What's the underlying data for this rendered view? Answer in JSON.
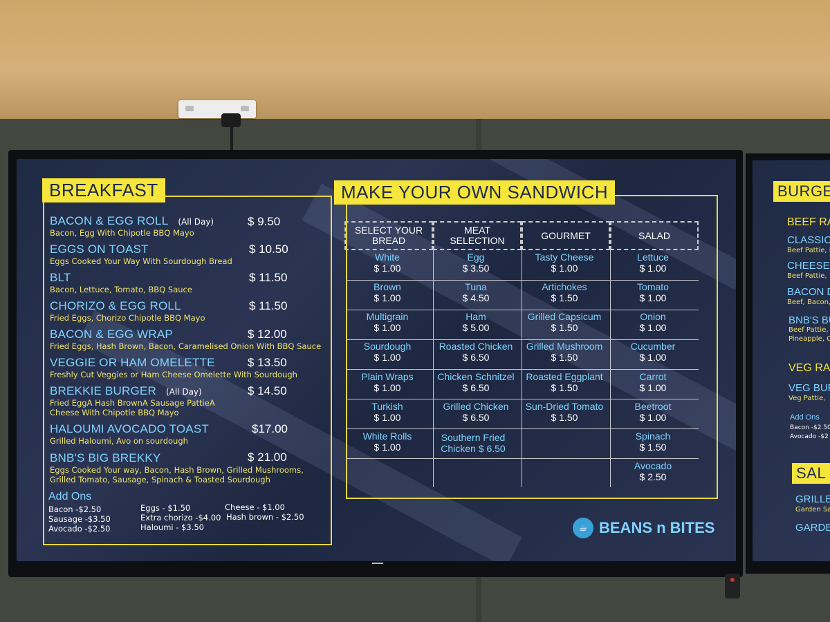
{
  "breakfast": {
    "title": "BREAKFAST",
    "items": [
      {
        "name": "BACON & EGG ROLL",
        "tag": "(All Day)",
        "price": "$ 9.50",
        "desc": "Bacon, Egg With Chipotle BBQ Mayo"
      },
      {
        "name": "EGGS ON TOAST",
        "tag": "",
        "price": "$ 10.50",
        "desc": "Eggs Cooked Your Way With Sourdough Bread"
      },
      {
        "name": "BLT",
        "tag": "",
        "price": "$ 11.50",
        "desc": "Bacon, Lettuce, Tomato, BBQ Sauce"
      },
      {
        "name": "CHORIZO & EGG ROLL",
        "tag": "",
        "price": "$ 11.50",
        "desc": "Fried Eggs, Chorizo Chipotle BBQ Mayo"
      },
      {
        "name": "BACON & EGG WRAP",
        "tag": "",
        "price": "$ 12.00",
        "desc": "Fried Eggs, Hash Brown, Bacon, Caramelised Onion With BBQ Sauce"
      },
      {
        "name": "VEGGIE OR HAM OMELETTE",
        "tag": "",
        "price": "$ 13.50",
        "desc": "Freshly Cut Veggies or Ham Cheese Omelette With Sourdough"
      },
      {
        "name": "BREKKIE BURGER",
        "tag": "(All Day)",
        "price": "$ 14.50",
        "desc": "Fried EggA Hash BrownA Sausage PattieA\nCheese With Chipotle BBQ Mayo"
      },
      {
        "name": "HALOUMI AVOCADO TOAST",
        "tag": "",
        "price": "$17.00",
        "desc": "Grilled Haloumi, Avo on sourdough"
      },
      {
        "name": "BNB'S BIG BREKKY",
        "tag": "",
        "price": "$ 21.00",
        "desc": "Eggs Cooked Your way, Bacon, Hash Brown, Grilled Mushrooms,\nGrilled Tomato, Sausage, Spinach & Toasted Sourdough"
      }
    ],
    "addons": {
      "title": "Add Ons",
      "col1": [
        "Bacon -$2.50",
        "Sausage -$3.50",
        "Avocado -$2.50"
      ],
      "col2": [
        "Eggs - $1.50",
        "Extra chorizo -$4.00",
        "Haloumi - $3.50"
      ],
      "col3": [
        "Cheese -   $1.00",
        "Hash brown  - $2.50"
      ]
    }
  },
  "sandwich": {
    "title": "MAKE YOUR OWN SANDWICH",
    "columns": [
      {
        "head": "SELECT YOUR\nBREAD",
        "cells": [
          {
            "name": "White",
            "price": "$ 1.00"
          },
          {
            "name": "Brown",
            "price": "$ 1.00"
          },
          {
            "name": "Multigrain",
            "price": "$ 1.00"
          },
          {
            "name": "Sourdough",
            "price": "$ 1.00"
          },
          {
            "name": "Plain Wraps",
            "price": "$ 1.00"
          },
          {
            "name": "Turkish",
            "price": "$ 1.00"
          },
          {
            "name": "White Rolls",
            "price": "$ 1.00"
          }
        ]
      },
      {
        "head": "MEAT\nSELECTION",
        "cells": [
          {
            "name": "Egg",
            "price": "$ 3.50"
          },
          {
            "name": "Tuna",
            "price": "$ 4.50"
          },
          {
            "name": "Ham",
            "price": "$ 5.00"
          },
          {
            "name": "Roasted Chicken",
            "price": "$ 6.50"
          },
          {
            "name": "Chicken Schnitzel",
            "price": "$ 6.50"
          },
          {
            "name": "Grilled Chicken",
            "price": "$ 6.50"
          },
          {
            "name": "Southern Fried",
            "price": "Chicken  $ 6.50"
          }
        ]
      },
      {
        "head": "GOURMET",
        "cells": [
          {
            "name": "Tasty Cheese",
            "price": "$ 1.00"
          },
          {
            "name": "Artichokes",
            "price": "$ 1.50"
          },
          {
            "name": "Grilled Capsicum",
            "price": "$ 1.50"
          },
          {
            "name": "Grilled Mushroom",
            "price": "$ 1.50"
          },
          {
            "name": "Roasted Eggplant",
            "price": "$ 1.50"
          },
          {
            "name": "Sun-Dried Tomato",
            "price": "$ 1.50"
          }
        ]
      },
      {
        "head": "SALAD",
        "cells": [
          {
            "name": "Lettuce",
            "price": "$ 1.00"
          },
          {
            "name": "Tomato",
            "price": "$ 1.00"
          },
          {
            "name": "Onion",
            "price": "$ 1.00"
          },
          {
            "name": "Cucumber",
            "price": "$ 1.00"
          },
          {
            "name": "Carrot",
            "price": "$ 1.00"
          },
          {
            "name": "Beetroot",
            "price": "$ 1.00"
          },
          {
            "name": "Spinach",
            "price": "$ 1.50"
          },
          {
            "name": "Avocado",
            "price": "$ 2.50"
          }
        ]
      }
    ]
  },
  "brand": "BEANS n BITES",
  "right_screen": {
    "badge1": "BURGE",
    "beef": "BEEF RA",
    "items": [
      {
        "name": "CLASSIC",
        "desc": "Beef Pattie, L"
      },
      {
        "name": "CHEESE B",
        "desc": "Beef Pattie,"
      },
      {
        "name": "BACON D",
        "desc": "Beef, Bacon,"
      },
      {
        "name": "BNB'S BU",
        "desc": "Beef Pattie,"
      }
    ],
    "bnb_desc2": "Pineapple, C",
    "veg": "VEG RA",
    "veg_item": "VEG BUR",
    "veg_desc": "Veg Pattie,",
    "addons_title": "Add Ons",
    "addons": [
      "Bacon -$2.50",
      "Avocado -$2"
    ],
    "badge2": "SAL",
    "grille": "GRILLE",
    "garden_desc": "Garden Sa",
    "garde": "GARDE"
  },
  "colors": {
    "accent_yellow": "#f6e53b",
    "item_blue": "#7fd4ff",
    "desc_yellow": "#f1e46a",
    "screen_navy": "#1f2a44"
  }
}
